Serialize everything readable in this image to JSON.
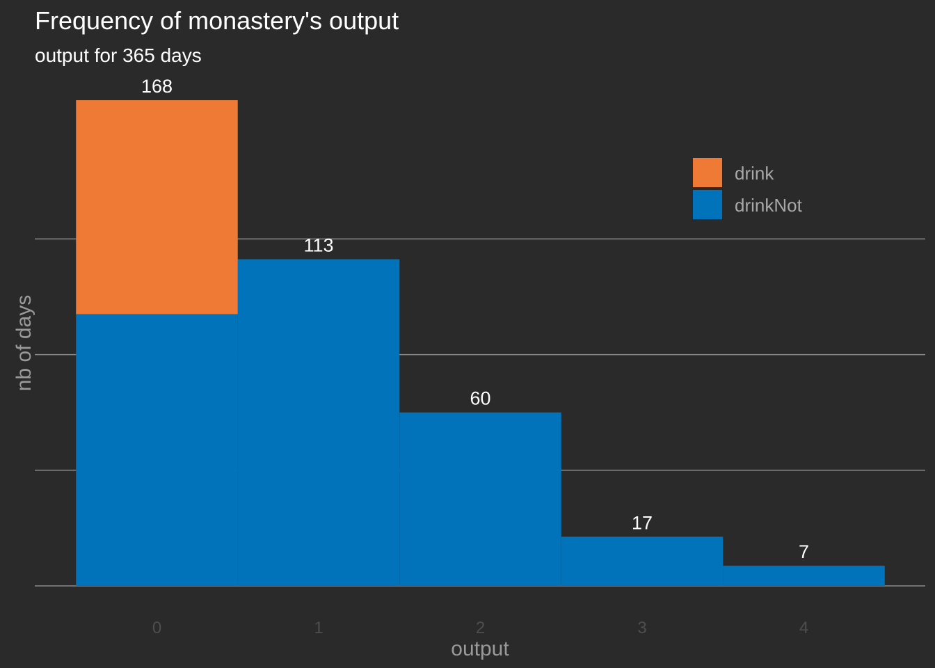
{
  "chart_data": {
    "type": "bar",
    "stacked": true,
    "title": "Frequency of monastery's output",
    "subtitle": "output for 365 days",
    "xlabel": "output",
    "ylabel": "nb of days",
    "categories": [
      "0",
      "1",
      "2",
      "3",
      "4"
    ],
    "series": [
      {
        "name": "drinkNot",
        "color": "#0073bb",
        "values": [
          94,
          113,
          60,
          17,
          7
        ]
      },
      {
        "name": "drink",
        "color": "#ef7a35",
        "values": [
          74,
          0,
          0,
          0,
          0
        ]
      }
    ],
    "totals": [
      168,
      113,
      60,
      17,
      7
    ],
    "data_labels": [
      "168",
      "113",
      "60",
      "17",
      "7"
    ],
    "ylim": [
      0,
      168
    ],
    "y_gridlines": [
      0,
      40,
      80,
      120
    ],
    "y_tick_labels_shown": false,
    "grid": true,
    "legend_position": "top-right",
    "legend_order": [
      "drink",
      "drinkNot"
    ]
  }
}
